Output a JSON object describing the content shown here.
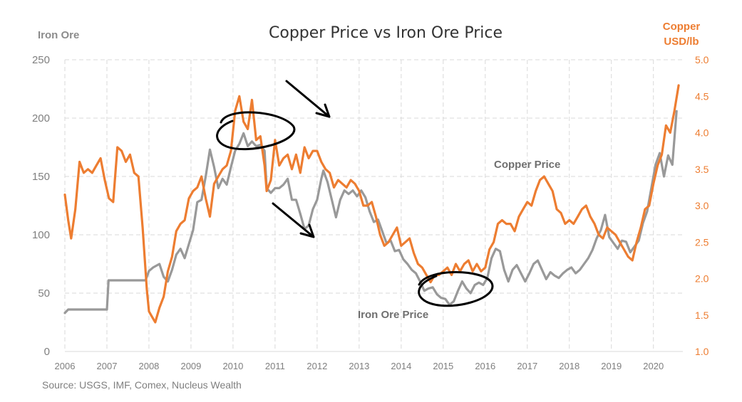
{
  "chart_data": {
    "type": "line",
    "title": "Copper Price vs Iron Ore Price",
    "y_left_label": "Iron Ore",
    "y_right_label_line1": "Copper",
    "y_right_label_line2": "USD/lb",
    "y_left_ticks": [
      "0",
      "50",
      "100",
      "150",
      "200",
      "250"
    ],
    "y_right_ticks": [
      "1.0",
      "1.5",
      "2.0",
      "2.5",
      "3.0",
      "3.5",
      "4.0",
      "4.5",
      "5.0"
    ],
    "x_ticks": [
      "2006",
      "2007",
      "2008",
      "2009",
      "2010",
      "2011",
      "2012",
      "2013",
      "2014",
      "2015",
      "2016",
      "2017",
      "2018",
      "2019",
      "2020"
    ],
    "ylim_left": [
      0,
      250
    ],
    "ylim_right": [
      1.0,
      5.0
    ],
    "xlim": [
      2006,
      2020.7
    ],
    "annotations": {
      "copper_label": "Copper Price",
      "iron_label": "Iron Ore Price"
    },
    "source": "Source: USGS, IMF, Comex, Nucleus Wealth",
    "colors": {
      "copper": "#ed7d31",
      "iron": "#999999",
      "grid": "#d9d9d9",
      "ink": "#000000"
    },
    "series": [
      {
        "name": "Iron Ore",
        "axis": "left",
        "x": [
          2006.0,
          2006.08,
          2006.5,
          2006.9,
          2007.0,
          2007.04,
          2007.5,
          2007.92,
          2008.0,
          2008.1,
          2008.25,
          2008.35,
          2008.45,
          2008.55,
          2008.65,
          2008.75,
          2008.85,
          2008.95,
          2009.05,
          2009.15,
          2009.25,
          2009.35,
          2009.45,
          2009.55,
          2009.65,
          2009.75,
          2009.85,
          2009.95,
          2010.05,
          2010.15,
          2010.25,
          2010.35,
          2010.45,
          2010.55,
          2010.65,
          2010.75,
          2010.8,
          2010.9,
          2011.0,
          2011.1,
          2011.2,
          2011.3,
          2011.4,
          2011.5,
          2011.6,
          2011.7,
          2011.8,
          2011.9,
          2012.0,
          2012.1,
          2012.15,
          2012.25,
          2012.35,
          2012.45,
          2012.55,
          2012.65,
          2012.75,
          2012.85,
          2012.95,
          2013.05,
          2013.15,
          2013.25,
          2013.35,
          2013.45,
          2013.55,
          2013.65,
          2013.75,
          2013.85,
          2013.95,
          2014.05,
          2014.15,
          2014.25,
          2014.35,
          2014.45,
          2014.55,
          2014.65,
          2014.75,
          2014.85,
          2014.95,
          2015.05,
          2015.15,
          2015.25,
          2015.35,
          2015.45,
          2015.55,
          2015.65,
          2015.75,
          2015.85,
          2015.95,
          2016.05,
          2016.15,
          2016.25,
          2016.35,
          2016.45,
          2016.55,
          2016.65,
          2016.75,
          2016.85,
          2016.95,
          2017.05,
          2017.15,
          2017.25,
          2017.35,
          2017.45,
          2017.55,
          2017.65,
          2017.75,
          2017.85,
          2017.95,
          2018.05,
          2018.15,
          2018.25,
          2018.35,
          2018.45,
          2018.55,
          2018.65,
          2018.75,
          2018.85,
          2018.95,
          2019.05,
          2019.15,
          2019.25,
          2019.35,
          2019.45,
          2019.55,
          2019.65,
          2019.75,
          2019.85,
          2019.95,
          2020.05,
          2020.15,
          2020.25,
          2020.35,
          2020.45,
          2020.55
        ],
        "values": [
          33,
          36,
          36,
          36,
          36,
          61,
          61,
          61,
          69,
          72,
          75,
          64,
          60,
          70,
          83,
          88,
          80,
          92,
          104,
          128,
          130,
          150,
          173,
          158,
          140,
          148,
          143,
          158,
          172,
          178,
          187,
          176,
          180,
          176,
          177,
          172,
          140,
          136,
          140,
          140,
          143,
          148,
          130,
          130,
          118,
          105,
          108,
          122,
          130,
          148,
          155,
          145,
          130,
          115,
          130,
          138,
          135,
          138,
          133,
          138,
          132,
          120,
          111,
          113,
          103,
          93,
          95,
          86,
          87,
          79,
          75,
          70,
          67,
          60,
          52,
          54,
          55,
          49,
          46,
          45,
          40,
          43,
          52,
          60,
          54,
          50,
          57,
          59,
          57,
          63,
          80,
          88,
          86,
          70,
          60,
          70,
          74,
          67,
          60,
          67,
          75,
          78,
          70,
          62,
          68,
          65,
          63,
          67,
          70,
          72,
          67,
          70,
          75,
          80,
          87,
          97,
          104,
          117,
          98,
          93,
          88,
          95,
          94,
          85,
          90,
          95,
          110,
          120,
          140,
          160,
          170,
          150,
          168,
          160,
          206
        ]
      },
      {
        "name": "Copper",
        "axis": "right",
        "x": [
          2006.0,
          2006.08,
          2006.15,
          2006.25,
          2006.35,
          2006.45,
          2006.55,
          2006.65,
          2006.75,
          2006.85,
          2006.95,
          2007.05,
          2007.15,
          2007.25,
          2007.35,
          2007.45,
          2007.55,
          2007.65,
          2007.75,
          2007.85,
          2007.95,
          2008.0,
          2008.05,
          2008.15,
          2008.25,
          2008.35,
          2008.45,
          2008.55,
          2008.65,
          2008.75,
          2008.85,
          2008.95,
          2009.05,
          2009.15,
          2009.25,
          2009.35,
          2009.45,
          2009.55,
          2009.65,
          2009.75,
          2009.85,
          2009.95,
          2010.05,
          2010.15,
          2010.25,
          2010.35,
          2010.45,
          2010.55,
          2010.65,
          2010.75,
          2010.8,
          2010.9,
          2011.0,
          2011.1,
          2011.2,
          2011.3,
          2011.4,
          2011.5,
          2011.6,
          2011.7,
          2011.8,
          2011.9,
          2012.0,
          2012.1,
          2012.2,
          2012.3,
          2012.4,
          2012.5,
          2012.6,
          2012.7,
          2012.8,
          2012.9,
          2013.0,
          2013.1,
          2013.2,
          2013.3,
          2013.4,
          2013.5,
          2013.6,
          2013.7,
          2013.8,
          2013.9,
          2014.0,
          2014.1,
          2014.2,
          2014.3,
          2014.4,
          2014.5,
          2014.6,
          2014.7,
          2014.8,
          2014.9,
          2015.0,
          2015.1,
          2015.2,
          2015.3,
          2015.4,
          2015.5,
          2015.6,
          2015.7,
          2015.8,
          2015.9,
          2016.0,
          2016.1,
          2016.2,
          2016.3,
          2016.4,
          2016.5,
          2016.6,
          2016.7,
          2016.8,
          2016.9,
          2017.0,
          2017.1,
          2017.2,
          2017.3,
          2017.4,
          2017.5,
          2017.6,
          2017.7,
          2017.8,
          2017.9,
          2018.0,
          2018.1,
          2018.2,
          2018.3,
          2018.4,
          2018.5,
          2018.6,
          2018.7,
          2018.8,
          2018.9,
          2019.0,
          2019.1,
          2019.2,
          2019.3,
          2019.4,
          2019.5,
          2019.6,
          2019.7,
          2019.8,
          2019.9,
          2020.0,
          2020.1,
          2020.2,
          2020.3,
          2020.4,
          2020.5,
          2020.6
        ],
        "values": [
          3.15,
          2.8,
          2.55,
          2.95,
          3.6,
          3.45,
          3.5,
          3.45,
          3.55,
          3.65,
          3.35,
          3.1,
          3.05,
          3.8,
          3.75,
          3.6,
          3.7,
          3.45,
          3.4,
          2.7,
          1.85,
          1.55,
          1.5,
          1.4,
          1.6,
          1.75,
          2.1,
          2.3,
          2.65,
          2.75,
          2.8,
          3.1,
          3.2,
          3.25,
          3.4,
          3.1,
          2.85,
          3.3,
          3.4,
          3.5,
          3.55,
          3.75,
          4.3,
          4.5,
          4.15,
          4.05,
          4.45,
          3.9,
          3.95,
          3.55,
          3.2,
          3.35,
          3.9,
          3.55,
          3.65,
          3.7,
          3.5,
          3.7,
          3.45,
          3.8,
          3.65,
          3.75,
          3.75,
          3.6,
          3.5,
          3.45,
          3.25,
          3.35,
          3.3,
          3.25,
          3.35,
          3.3,
          3.2,
          3.0,
          3.0,
          3.05,
          2.85,
          2.6,
          2.45,
          2.5,
          2.6,
          2.7,
          2.45,
          2.5,
          2.55,
          2.35,
          2.2,
          2.15,
          2.05,
          1.95,
          2.05,
          2.05,
          2.1,
          2.15,
          2.05,
          2.2,
          2.1,
          2.2,
          2.25,
          2.1,
          2.2,
          2.1,
          2.15,
          2.4,
          2.5,
          2.75,
          2.8,
          2.75,
          2.75,
          2.65,
          2.85,
          2.95,
          3.05,
          3.0,
          3.2,
          3.35,
          3.4,
          3.3,
          3.2,
          2.95,
          2.9,
          2.75,
          2.8,
          2.75,
          2.85,
          2.95,
          3.0,
          2.85,
          2.75,
          2.6,
          2.55,
          2.7,
          2.65,
          2.6,
          2.5,
          2.4,
          2.3,
          2.25,
          2.5,
          2.7,
          2.95,
          3.0,
          3.3,
          3.55,
          3.7,
          4.1,
          4.0,
          4.3,
          4.65
        ]
      }
    ]
  }
}
